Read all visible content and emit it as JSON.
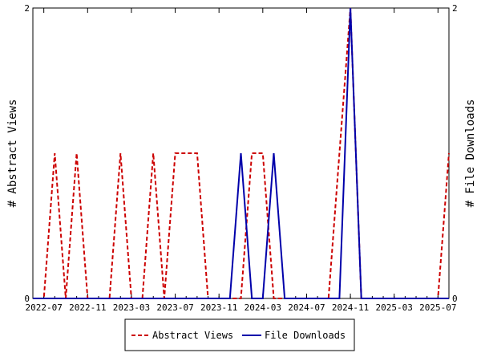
{
  "chart_data": {
    "type": "line",
    "ylabel_left": "# Abstract Views",
    "ylabel_right": "# File Downloads",
    "ylim": [
      0,
      2
    ],
    "y_ticks": [
      "0",
      "2"
    ],
    "x_ticks": [
      "2022-07",
      "2022-11",
      "2023-03",
      "2023-07",
      "2023-11",
      "2024-03",
      "2024-07",
      "2024-11",
      "2025-03",
      "2025-07"
    ],
    "x": [
      "2022-06",
      "2022-07",
      "2022-08",
      "2022-09",
      "2022-10",
      "2022-11",
      "2022-12",
      "2023-01",
      "2023-02",
      "2023-03",
      "2023-04",
      "2023-05",
      "2023-06",
      "2023-07",
      "2023-08",
      "2023-09",
      "2023-10",
      "2023-11",
      "2023-12",
      "2024-01",
      "2024-02",
      "2024-03",
      "2024-04",
      "2024-05",
      "2024-06",
      "2024-07",
      "2024-08",
      "2024-09",
      "2024-10",
      "2024-11",
      "2024-12",
      "2025-01",
      "2025-02",
      "2025-03",
      "2025-04",
      "2025-05",
      "2025-06",
      "2025-07",
      "2025-08"
    ],
    "series": [
      {
        "name": "Abstract Views",
        "color": "#cc0000",
        "dash": true,
        "values": [
          0,
          0,
          1,
          0,
          1,
          0,
          0,
          0,
          1,
          0,
          0,
          1,
          0,
          1,
          1,
          1,
          0,
          0,
          0,
          0,
          1,
          1,
          0,
          0,
          0,
          0,
          0,
          0,
          1,
          2,
          0,
          0,
          0,
          0,
          0,
          0,
          0,
          0,
          1
        ]
      },
      {
        "name": "File Downloads",
        "color": "#0000aa",
        "dash": false,
        "values": [
          0,
          0,
          0,
          0,
          0,
          0,
          0,
          0,
          0,
          0,
          0,
          0,
          0,
          0,
          0,
          0,
          0,
          0,
          0,
          1,
          0,
          0,
          1,
          0,
          0,
          0,
          0,
          0,
          0,
          2,
          0,
          0,
          0,
          0,
          0,
          0,
          0,
          0,
          0
        ]
      }
    ],
    "legend_position": "bottom"
  }
}
